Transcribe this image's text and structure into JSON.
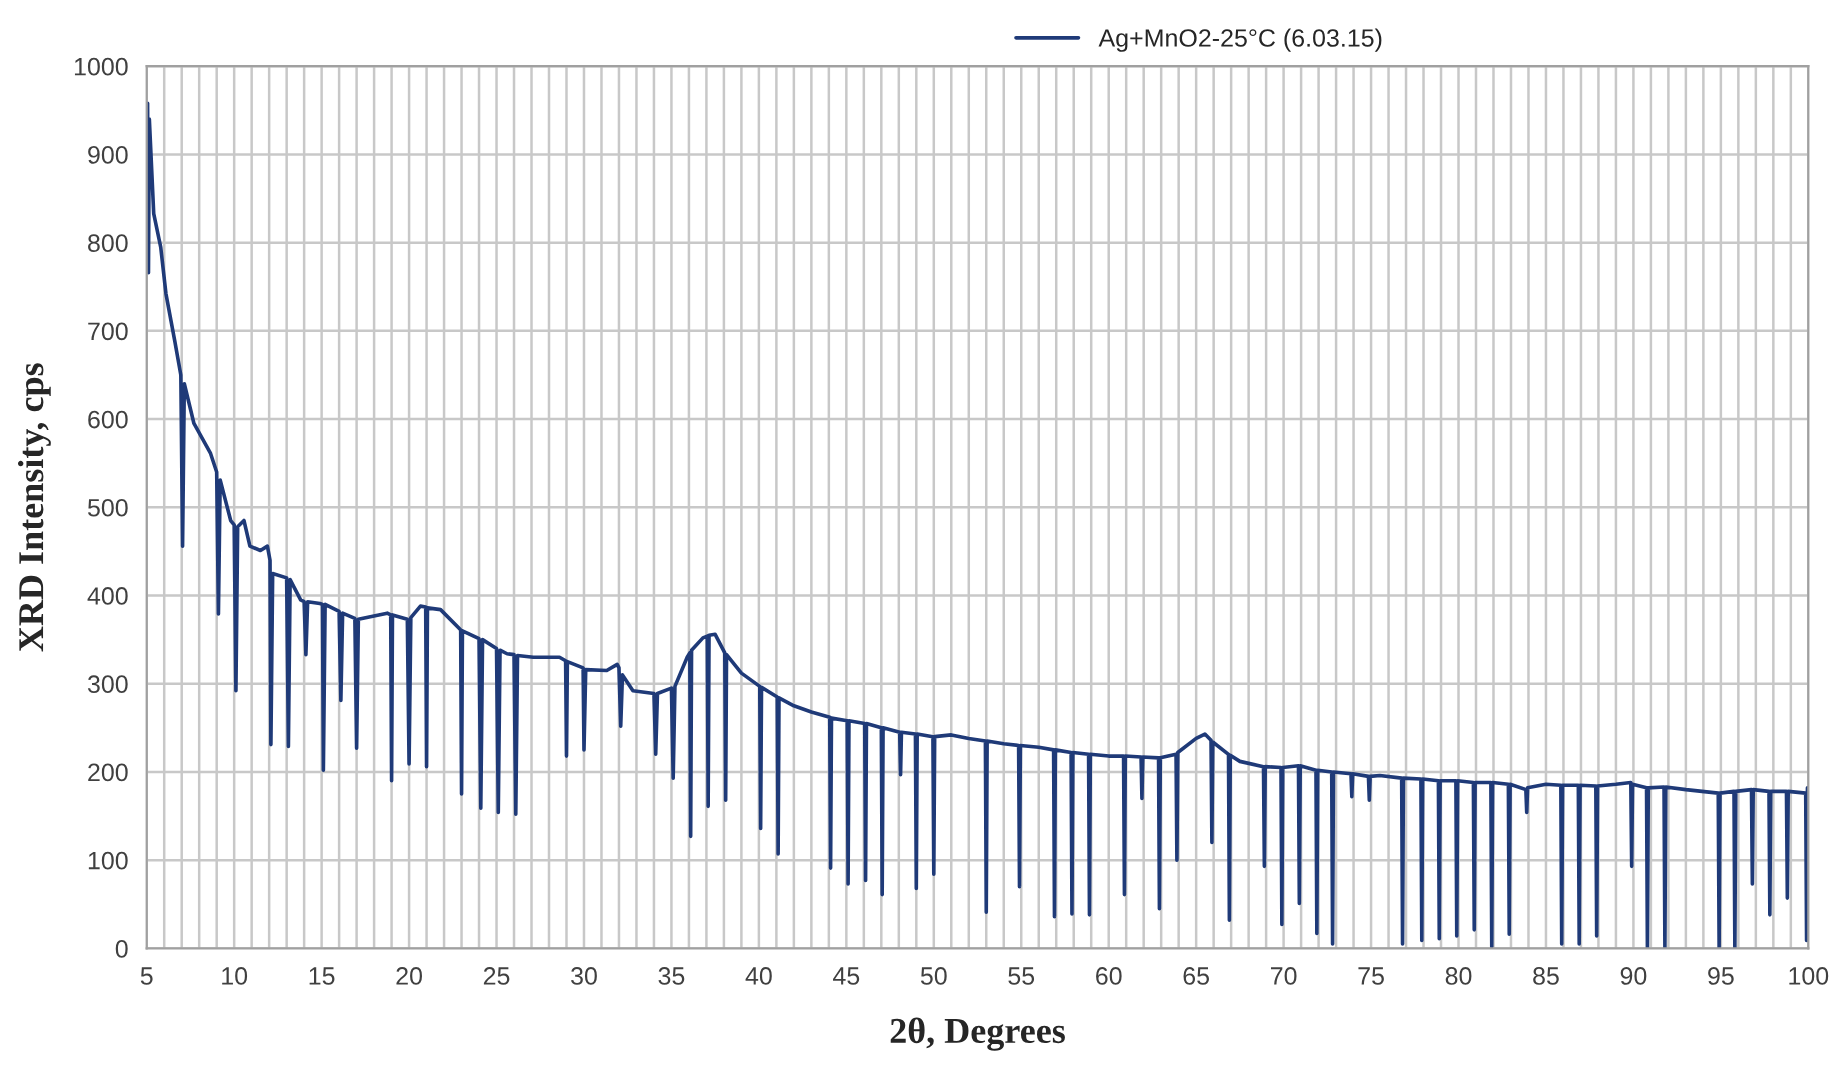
{
  "chart_data": {
    "type": "line",
    "xlabel": "2θ, Degrees",
    "ylabel": "XRD Intensity, cps",
    "xlim": [
      5,
      100
    ],
    "ylim": [
      0,
      1000
    ],
    "xticks": [
      5,
      {
        "value": 6,
        "label": null
      },
      {
        "value": 7,
        "label": null
      },
      {
        "value": 8,
        "label": null
      },
      {
        "value": 9,
        "label": null
      },
      10,
      {
        "value": 11,
        "label": null
      },
      {
        "value": 12,
        "label": null
      },
      {
        "value": 13,
        "label": null
      },
      {
        "value": 14,
        "label": null
      },
      15,
      {
        "value": 16,
        "label": null
      },
      {
        "value": 17,
        "label": null
      },
      {
        "value": 18,
        "label": null
      },
      {
        "value": 19,
        "label": null
      },
      20,
      {
        "value": 21,
        "label": null
      },
      {
        "value": 22,
        "label": null
      },
      {
        "value": 23,
        "label": null
      },
      {
        "value": 24,
        "label": null
      },
      25,
      {
        "value": 26,
        "label": null
      },
      {
        "value": 27,
        "label": null
      },
      {
        "value": 28,
        "label": null
      },
      {
        "value": 29,
        "label": null
      },
      30,
      {
        "value": 31,
        "label": null
      },
      {
        "value": 32,
        "label": null
      },
      {
        "value": 33,
        "label": null
      },
      {
        "value": 34,
        "label": null
      },
      35,
      {
        "value": 36,
        "label": null
      },
      {
        "value": 37,
        "label": null
      },
      {
        "value": 38,
        "label": null
      },
      {
        "value": 39,
        "label": null
      },
      40,
      {
        "value": 41,
        "label": null
      },
      {
        "value": 42,
        "label": null
      },
      {
        "value": 43,
        "label": null
      },
      {
        "value": 44,
        "label": null
      },
      45,
      {
        "value": 46,
        "label": null
      },
      {
        "value": 47,
        "label": null
      },
      {
        "value": 48,
        "label": null
      },
      {
        "value": 49,
        "label": null
      },
      50,
      {
        "value": 51,
        "label": null
      },
      {
        "value": 52,
        "label": null
      },
      {
        "value": 53,
        "label": null
      },
      {
        "value": 54,
        "label": null
      },
      55,
      {
        "value": 56,
        "label": null
      },
      {
        "value": 57,
        "label": null
      },
      {
        "value": 58,
        "label": null
      },
      {
        "value": 59,
        "label": null
      },
      60,
      {
        "value": 61,
        "label": null
      },
      {
        "value": 62,
        "label": null
      },
      {
        "value": 63,
        "label": null
      },
      {
        "value": 64,
        "label": null
      },
      65,
      {
        "value": 66,
        "label": null
      },
      {
        "value": 67,
        "label": null
      },
      {
        "value": 68,
        "label": null
      },
      {
        "value": 69,
        "label": null
      },
      70,
      {
        "value": 71,
        "label": null
      },
      {
        "value": 72,
        "label": null
      },
      {
        "value": 73,
        "label": null
      },
      {
        "value": 74,
        "label": null
      },
      75,
      {
        "value": 76,
        "label": null
      },
      {
        "value": 77,
        "label": null
      },
      {
        "value": 78,
        "label": null
      },
      {
        "value": 79,
        "label": null
      },
      80,
      {
        "value": 81,
        "label": null
      },
      {
        "value": 82,
        "label": null
      },
      {
        "value": 83,
        "label": null
      },
      {
        "value": 84,
        "label": null
      },
      85,
      {
        "value": 86,
        "label": null
      },
      {
        "value": 87,
        "label": null
      },
      {
        "value": 88,
        "label": null
      },
      {
        "value": 89,
        "label": null
      },
      90,
      {
        "value": 91,
        "label": null
      },
      {
        "value": 92,
        "label": null
      },
      {
        "value": 93,
        "label": null
      },
      {
        "value": 94,
        "label": null
      },
      95,
      {
        "value": 96,
        "label": null
      },
      {
        "value": 97,
        "label": null
      },
      {
        "value": 98,
        "label": null
      },
      {
        "value": 99,
        "label": null
      },
      100
    ],
    "yticks": [
      0,
      100,
      200,
      300,
      400,
      500,
      600,
      700,
      800,
      900,
      1000
    ],
    "grid": true,
    "legend": "top right",
    "marker": "none",
    "line_style": "solid",
    "series": [
      {
        "name": "Ag+MnO2-25°C (6.03.15)",
        "color": "#1f3a78",
        "x": [
          5.0,
          5.05,
          5.1,
          5.15,
          5.4,
          5.8,
          6.1,
          6.6,
          6.95,
          7.05,
          7.15,
          7.7,
          8.65,
          9.0,
          9.1,
          9.2,
          9.8,
          10.0,
          10.1,
          10.2,
          10.56,
          10.9,
          11.5,
          11.9,
          12.05,
          12.1,
          12.2,
          13.0,
          13.1,
          13.2,
          13.8,
          14.0,
          14.1,
          14.2,
          14.9,
          15.05,
          15.1,
          15.2,
          16.0,
          16.1,
          16.2,
          16.9,
          17.0,
          17.1,
          18.75,
          18.95,
          19.0,
          19.05,
          19.9,
          20.0,
          20.1,
          20.65,
          20.95,
          21.0,
          21.05,
          21.8,
          22.9,
          22.95,
          23.0,
          23.05,
          24.0,
          24.1,
          24.2,
          25.0,
          25.1,
          25.2,
          25.6,
          26.0,
          26.1,
          26.2,
          27.1,
          28.6,
          28.95,
          29.0,
          29.05,
          29.95,
          30.0,
          30.1,
          31.3,
          31.9,
          32.0,
          32.1,
          32.2,
          32.8,
          34.0,
          34.1,
          34.2,
          35.0,
          35.1,
          35.2,
          35.9,
          36.05,
          36.1,
          36.15,
          36.8,
          37.05,
          37.1,
          37.15,
          37.5,
          38.05,
          38.1,
          38.15,
          39.0,
          40.05,
          40.1,
          40.15,
          41.05,
          41.1,
          41.15,
          42.0,
          43.0,
          44.05,
          44.1,
          44.15,
          45.05,
          45.1,
          45.15,
          46.05,
          46.1,
          46.15,
          47.0,
          47.05,
          47.1,
          48.05,
          48.1,
          48.15,
          48.95,
          49.0,
          49.05,
          49.95,
          50.0,
          50.05,
          51.0,
          52.0,
          52.95,
          53.0,
          53.05,
          54.0,
          54.85,
          54.9,
          54.95,
          56.0,
          56.85,
          56.9,
          56.95,
          57.85,
          57.9,
          57.95,
          58.85,
          58.9,
          58.95,
          60.0,
          60.85,
          60.9,
          60.95,
          61.85,
          61.9,
          61.95,
          62.85,
          62.9,
          62.95,
          63.85,
          63.9,
          63.95,
          65.0,
          65.5,
          65.85,
          65.9,
          65.95,
          66.85,
          66.9,
          66.95,
          67.5,
          68.85,
          68.9,
          68.95,
          69.85,
          69.9,
          69.95,
          70.85,
          70.9,
          70.95,
          71.85,
          71.9,
          71.95,
          72.75,
          72.8,
          72.85,
          73.85,
          73.9,
          73.95,
          74.85,
          74.9,
          74.95,
          75.5,
          76.75,
          76.8,
          76.85,
          77.85,
          77.9,
          77.95,
          78.85,
          78.9,
          78.95,
          79.85,
          79.9,
          79.95,
          80.85,
          80.9,
          80.95,
          81.85,
          81.9,
          81.95,
          82.85,
          82.9,
          82.95,
          83.85,
          83.9,
          83.95,
          85.0,
          85.85,
          85.9,
          85.95,
          86.85,
          86.9,
          86.95,
          87.85,
          87.9,
          87.95,
          89.0,
          89.85,
          89.9,
          89.95,
          90.75,
          90.8,
          90.85,
          91.75,
          91.8,
          91.85,
          93.0,
          94.85,
          94.9,
          94.95,
          95.75,
          95.8,
          95.85,
          96.75,
          96.8,
          96.85,
          97.75,
          97.8,
          97.85,
          98.75,
          98.8,
          98.85,
          99.85,
          99.9,
          99.95,
          100
        ],
        "values": [
          900,
          958,
          766,
          940,
          833,
          795,
          742,
          689,
          650,
          456,
          640,
          595,
          561,
          540,
          379,
          531,
          485,
          480,
          292,
          478,
          485,
          456,
          451,
          456,
          440,
          231,
          425,
          420,
          229,
          418,
          395,
          393,
          333,
          393,
          391,
          390,
          202,
          390,
          382,
          281,
          380,
          374,
          227,
          373,
          380,
          378,
          190,
          378,
          373,
          209,
          375,
          388,
          387,
          206,
          386,
          384,
          362,
          361,
          175,
          360,
          351,
          159,
          350,
          340,
          154,
          338,
          334,
          333,
          152,
          332,
          330,
          330,
          326,
          218,
          325,
          318,
          225,
          316,
          315,
          322,
          318,
          252,
          310,
          292,
          289,
          220,
          289,
          295,
          193,
          297,
          330,
          335,
          127,
          338,
          352,
          354,
          161,
          355,
          356,
          335,
          168,
          333,
          312,
          297,
          136,
          296,
          285,
          107,
          284,
          275,
          268,
          262,
          91,
          261,
          258,
          73,
          258,
          255,
          77,
          255,
          250,
          61,
          250,
          245,
          197,
          245,
          243,
          68,
          243,
          240,
          84,
          240,
          242,
          238,
          235,
          41,
          235,
          232,
          230,
          70,
          230,
          228,
          225,
          36,
          225,
          222,
          39,
          222,
          220,
          38,
          220,
          218,
          218,
          61,
          218,
          217,
          170,
          217,
          216,
          45,
          216,
          220,
          100,
          222,
          238,
          243,
          236,
          120,
          234,
          220,
          32,
          219,
          212,
          206,
          93,
          206,
          205,
          27,
          205,
          207,
          51,
          207,
          202,
          17,
          202,
          200,
          5,
          200,
          198,
          172,
          198,
          195,
          168,
          195,
          196,
          193,
          5,
          193,
          192,
          9,
          192,
          190,
          11,
          190,
          190,
          14,
          190,
          188,
          21,
          188,
          188,
          2,
          188,
          186,
          16,
          186,
          180,
          154,
          182,
          186,
          185,
          5,
          185,
          185,
          5,
          185,
          184,
          14,
          184,
          186,
          188,
          93,
          186,
          182,
          0,
          182,
          183,
          0,
          183,
          180,
          176,
          0,
          176,
          178,
          0,
          178,
          180,
          73,
          180,
          178,
          38,
          178,
          178,
          57,
          178,
          176,
          9,
          182,
          178
        ]
      }
    ]
  }
}
